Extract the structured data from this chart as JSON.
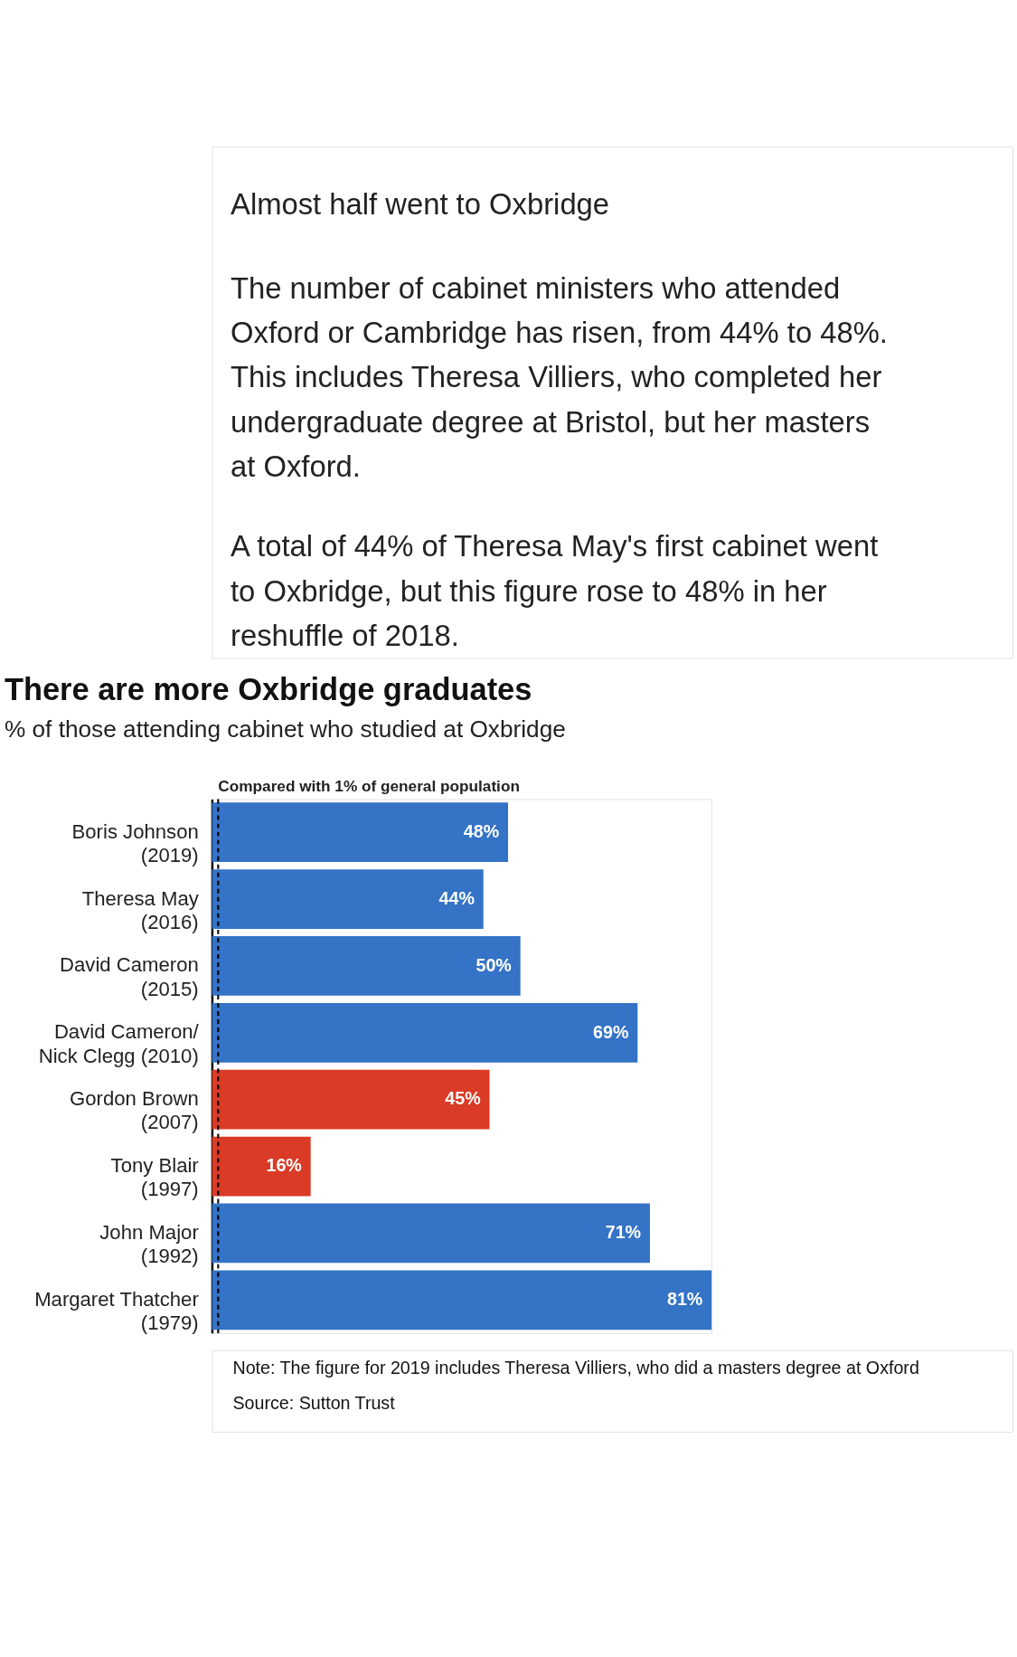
{
  "chart_data": {
    "type": "bar",
    "orientation": "horizontal",
    "title": "There are more Oxbridge graduates",
    "subtitle": "% of those attending cabinet who studied at Oxbridge",
    "categories": [
      "Boris Johnson (2019)",
      "Theresa May (2016)",
      "David Cameron (2015)",
      "David Cameron/ Nick Clegg (2010)",
      "Gordon Brown (2007)",
      "Tony Blair (1997)",
      "John Major (1992)",
      "Margaret Thatcher (1979)"
    ],
    "values": [
      48,
      44,
      50,
      69,
      45,
      16,
      71,
      81
    ],
    "colors": [
      "#3473c5",
      "#3473c5",
      "#3473c5",
      "#3473c5",
      "#d93b26",
      "#d93b26",
      "#3473c5",
      "#3473c5"
    ],
    "value_labels": [
      "48%",
      "44%",
      "50%",
      "69%",
      "45%",
      "16%",
      "71%",
      "81%"
    ],
    "ref_lines": [
      {
        "axis": "x",
        "value": 1,
        "label": "Compared with 1% of general population",
        "line_style": "dashed",
        "color": "#000000"
      }
    ],
    "annotations": [
      "Almost half went to Oxbridge",
      "The number of cabinet ministers who attended Oxford or Cambridge has risen, from 44% to 48%. This includes Theresa Villiers, who completed her undergraduate degree at Bristol, but her masters at Oxford.",
      "A total of 44% of Theresa May's first cabinet went to Oxbridge, but this figure rose to 48% in her reshuffle of 2018.",
      "Note: The figure for 2019 includes Theresa Villiers, who did a masters degree at Oxford",
      "Source: Sutton Trust"
    ],
    "legend": false,
    "grid": false
  }
}
